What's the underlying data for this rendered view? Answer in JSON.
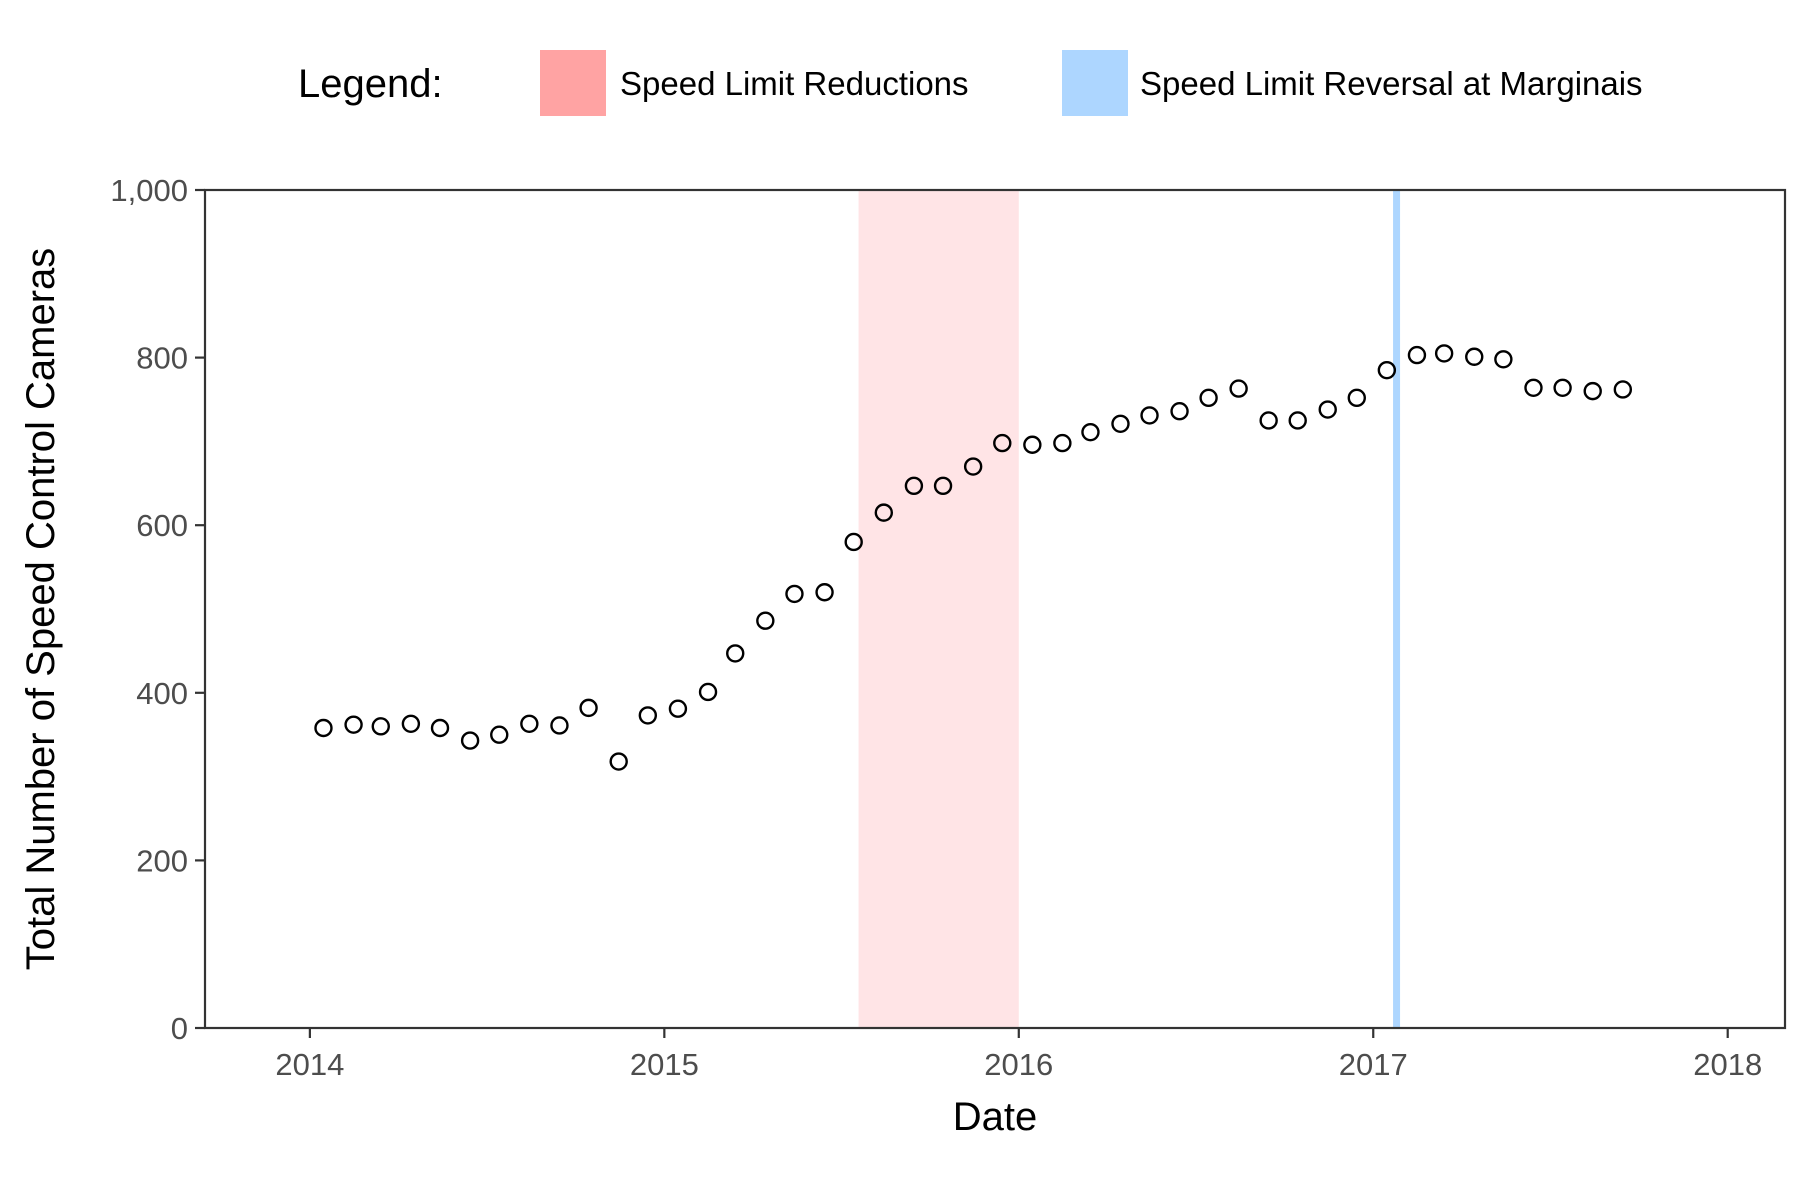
{
  "chart_data": {
    "type": "scatter",
    "xlabel": "Date",
    "ylabel": "Total Number of Speed Control Cameras",
    "xlim": [
      "2013-09-15",
      "2018-03-01"
    ],
    "ylim": [
      0,
      1000
    ],
    "x_ticks": [
      "2014",
      "2015",
      "2016",
      "2017",
      "2018"
    ],
    "y_ticks": [
      "0",
      "200",
      "400",
      "600",
      "800",
      "1,000"
    ],
    "grid": false,
    "legend": {
      "title": "Legend:",
      "placement": "top",
      "items": [
        {
          "label": "Speed Limit Reductions",
          "color": "#ffa3a3"
        },
        {
          "label": "Speed Limit Reversal at Marginais",
          "color": "#add6ff"
        }
      ]
    },
    "regions": [
      {
        "name": "Speed Limit Reductions",
        "start": "2015-07-20",
        "end": "2016-01-01",
        "color": "#ffe4e6"
      },
      {
        "name": "Speed Limit Reversal at Marginais",
        "start": "2017-01-25",
        "end": "2017-01-25",
        "color": "#add6ff"
      }
    ],
    "series": [
      {
        "marker": "open-circle",
        "color": "#000000",
        "points": [
          [
            "2014-01-15",
            358
          ],
          [
            "2014-02-15",
            362
          ],
          [
            "2014-03-15",
            360
          ],
          [
            "2014-04-15",
            363
          ],
          [
            "2014-05-15",
            358
          ],
          [
            "2014-06-15",
            343
          ],
          [
            "2014-07-15",
            350
          ],
          [
            "2014-08-15",
            363
          ],
          [
            "2014-09-15",
            361
          ],
          [
            "2014-10-15",
            382
          ],
          [
            "2014-11-15",
            318
          ],
          [
            "2014-12-15",
            373
          ],
          [
            "2015-01-15",
            381
          ],
          [
            "2015-02-15",
            401
          ],
          [
            "2015-03-15",
            447
          ],
          [
            "2015-04-15",
            486
          ],
          [
            "2015-05-15",
            518
          ],
          [
            "2015-06-15",
            520
          ],
          [
            "2015-07-15",
            580
          ],
          [
            "2015-08-15",
            615
          ],
          [
            "2015-09-15",
            647
          ],
          [
            "2015-10-15",
            647
          ],
          [
            "2015-11-15",
            670
          ],
          [
            "2015-12-15",
            698
          ],
          [
            "2016-01-15",
            696
          ],
          [
            "2016-02-15",
            698
          ],
          [
            "2016-03-15",
            711
          ],
          [
            "2016-04-15",
            721
          ],
          [
            "2016-05-15",
            731
          ],
          [
            "2016-06-15",
            736
          ],
          [
            "2016-07-15",
            752
          ],
          [
            "2016-08-15",
            763
          ],
          [
            "2016-09-15",
            725
          ],
          [
            "2016-10-15",
            725
          ],
          [
            "2016-11-15",
            738
          ],
          [
            "2016-12-15",
            752
          ],
          [
            "2017-01-15",
            785
          ],
          [
            "2017-02-15",
            803
          ],
          [
            "2017-03-15",
            805
          ],
          [
            "2017-04-15",
            801
          ],
          [
            "2017-05-15",
            798
          ],
          [
            "2017-06-15",
            764
          ],
          [
            "2017-07-15",
            764
          ],
          [
            "2017-08-15",
            760
          ],
          [
            "2017-09-15",
            762
          ]
        ]
      }
    ]
  }
}
